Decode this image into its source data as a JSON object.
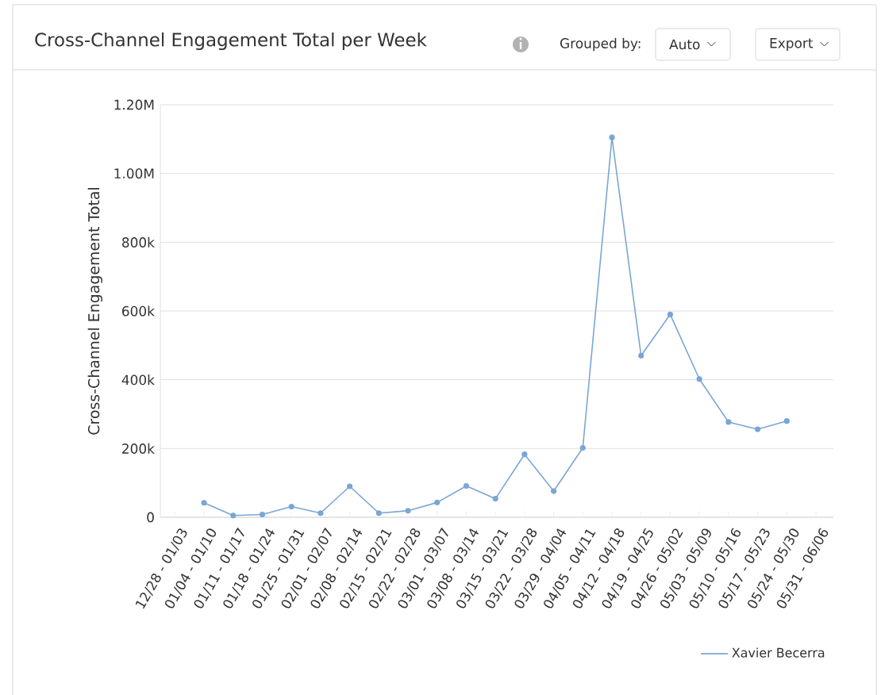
{
  "chart_data": {
    "type": "line",
    "title": "Cross-Channel Engagement Total per Week",
    "ylabel": "Cross-Channel Engagement Total",
    "annotations": [
      "Grouped by:",
      "Auto",
      "Export"
    ],
    "categories": [
      "12/28 - 01/03",
      "01/04 - 01/10",
      "01/11 - 01/17",
      "01/18 - 01/24",
      "01/25 - 01/31",
      "02/01 - 02/07",
      "02/08 - 02/14",
      "02/15 - 02/21",
      "02/22 - 02/28",
      "03/01 - 03/07",
      "03/08 - 03/14",
      "03/15 - 03/21",
      "03/22 - 03/28",
      "03/29 - 04/04",
      "04/05 - 04/11",
      "04/12 - 04/18",
      "04/19 - 04/25",
      "04/26 - 05/02",
      "05/03 - 05/09",
      "05/10 - 05/16",
      "05/17 - 05/23",
      "05/24 - 05/30",
      "05/31 - 06/06"
    ],
    "series": [
      {
        "name": "Xavier Becerra",
        "color": "#7aa6d6",
        "values": [
          null,
          42000,
          5000,
          8000,
          31000,
          12000,
          90000,
          12000,
          19000,
          43000,
          91000,
          54000,
          183000,
          76000,
          202000,
          1105000,
          470000,
          590000,
          402000,
          277000,
          256000,
          280000,
          null
        ]
      }
    ],
    "ylim": [
      0,
      1200000
    ],
    "yticks": [
      {
        "value": 0,
        "label": "0"
      },
      {
        "value": 200000,
        "label": "200k"
      },
      {
        "value": 400000,
        "label": "400k"
      },
      {
        "value": 600000,
        "label": "600k"
      },
      {
        "value": 800000,
        "label": "800k"
      },
      {
        "value": 1000000,
        "label": "1.00M"
      },
      {
        "value": 1200000,
        "label": "1.20M"
      }
    ],
    "grid": "y",
    "legend": "bottom right",
    "marker": "circle",
    "line_style": "solid"
  }
}
